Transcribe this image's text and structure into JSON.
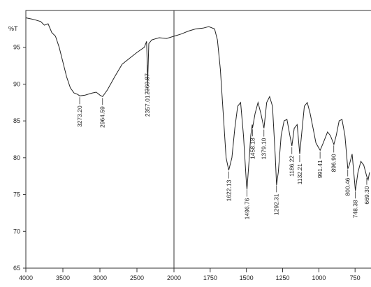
{
  "chart_data": {
    "type": "line",
    "ylabel": "%T",
    "xlim": [
      4000,
      640
    ],
    "xbreak": 2000,
    "ylim": [
      65,
      100
    ],
    "xticks": [
      4000,
      3500,
      3000,
      2500,
      2000,
      1750,
      1500,
      1250,
      1000,
      750
    ],
    "yticks": [
      65,
      70,
      75,
      80,
      85,
      90,
      95
    ],
    "color": "#222222",
    "x": [
      4000,
      3900,
      3800,
      3750,
      3700,
      3650,
      3600,
      3550,
      3500,
      3450,
      3400,
      3350,
      3300,
      3273,
      3200,
      3100,
      3050,
      3000,
      2964,
      2900,
      2800,
      2700,
      2600,
      2500,
      2400,
      2370,
      2360,
      2357,
      2340,
      2300,
      2200,
      2100,
      2000,
      1950,
      1900,
      1850,
      1800,
      1760,
      1720,
      1700,
      1680,
      1660,
      1640,
      1622,
      1600,
      1580,
      1560,
      1540,
      1520,
      1500,
      1496,
      1480,
      1470,
      1460,
      1458,
      1440,
      1420,
      1400,
      1379,
      1360,
      1340,
      1320,
      1300,
      1292,
      1280,
      1260,
      1240,
      1220,
      1200,
      1186,
      1170,
      1150,
      1132,
      1120,
      1100,
      1080,
      1060,
      1040,
      1020,
      991,
      970,
      940,
      920,
      896,
      880,
      860,
      840,
      820,
      800,
      790,
      770,
      750,
      748,
      730,
      710,
      690,
      670,
      660,
      650
    ],
    "values": [
      99.0,
      98.8,
      98.5,
      98.0,
      98.2,
      97.0,
      96.5,
      95.0,
      93.0,
      91.0,
      89.5,
      88.8,
      88.6,
      88.4,
      88.5,
      88.8,
      88.9,
      88.5,
      88.3,
      89.2,
      91.0,
      92.7,
      93.5,
      94.3,
      95.0,
      95.8,
      92.5,
      89.8,
      95.5,
      96.0,
      96.3,
      96.2,
      96.5,
      96.8,
      97.2,
      97.5,
      97.6,
      97.8,
      97.5,
      96.0,
      92.0,
      86.0,
      80.0,
      78.3,
      80.0,
      84.0,
      87.0,
      87.5,
      83.0,
      76.5,
      75.7,
      80.0,
      83.0,
      84.5,
      84.0,
      86.0,
      87.5,
      86.0,
      84.0,
      87.5,
      88.3,
      87.0,
      80.0,
      76.3,
      78.0,
      83.0,
      85.0,
      85.2,
      83.0,
      81.6,
      84.0,
      84.5,
      80.5,
      83.0,
      87.0,
      87.5,
      86.0,
      84.0,
      82.0,
      81.0,
      82.0,
      83.5,
      83.0,
      81.8,
      83.0,
      85.0,
      85.2,
      83.0,
      78.5,
      79.0,
      80.5,
      76.0,
      75.5,
      78.0,
      79.5,
      79.0,
      77.5,
      77.0,
      78.0
    ],
    "peaks": [
      {
        "value": 3273.2,
        "label": "3273.20"
      },
      {
        "value": 2964.59,
        "label": "2964.59"
      },
      {
        "value": 2360.87,
        "label": "2360.87"
      },
      {
        "value": 2357.01,
        "label": "2357.01"
      },
      {
        "value": 1622.13,
        "label": "1622.13"
      },
      {
        "value": 1496.76,
        "label": "1496.76"
      },
      {
        "value": 1458.18,
        "label": "1458.18"
      },
      {
        "value": 1379.1,
        "label": "1379.10"
      },
      {
        "value": 1292.31,
        "label": "1292.31"
      },
      {
        "value": 1186.22,
        "label": "1186.22"
      },
      {
        "value": 1132.21,
        "label": "1132.21"
      },
      {
        "value": 991.41,
        "label": "991.41"
      },
      {
        "value": 896.9,
        "label": "896.90"
      },
      {
        "value": 800.46,
        "label": "800.46"
      },
      {
        "value": 748.38,
        "label": "748.38"
      },
      {
        "value": 669.3,
        "label": "669.30"
      }
    ]
  }
}
